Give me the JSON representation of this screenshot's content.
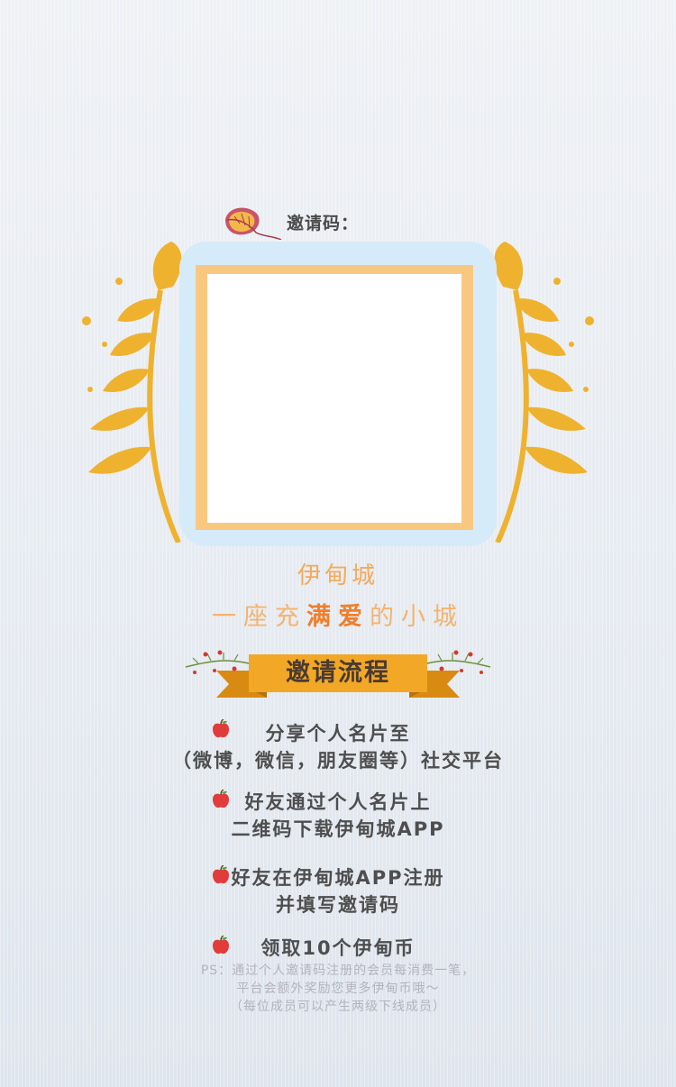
{
  "invite": {
    "label": "邀请码："
  },
  "tagline": {
    "brand": "伊甸城",
    "slogan_pre": "一座充",
    "slogan_highlight": "满爱",
    "slogan_post": "的小城"
  },
  "process": {
    "title": "邀请流程",
    "steps": [
      {
        "lines": [
          "分享个人名片至",
          "（微博，微信，朋友圈等）社交平台"
        ]
      },
      {
        "lines": [
          "好友通过个人名片上",
          "二维码下载伊甸城APP"
        ]
      },
      {
        "lines": [
          "好友在伊甸城APP注册",
          "并填写邀请码"
        ]
      },
      {
        "lines": [
          "领取10个伊甸币"
        ]
      }
    ],
    "notes": [
      "PS：通过个人邀请码注册的会员每消费一笔，",
      "平台会额外奖励您更多伊甸币哦～",
      "（每位成员可以产生两级下线成员）"
    ]
  },
  "colors": {
    "wheat": "#efb22f",
    "frame_bg": "#d6ebfa",
    "frame_border": "#f9c880",
    "ribbon": "#f2a826",
    "ribbon_dark": "#d98a12",
    "apple": "#e23b3b"
  },
  "icons": [
    "leaf-icon",
    "wheat-left-icon",
    "wheat-right-icon",
    "apple-icon",
    "berry-sprig-icon"
  ]
}
